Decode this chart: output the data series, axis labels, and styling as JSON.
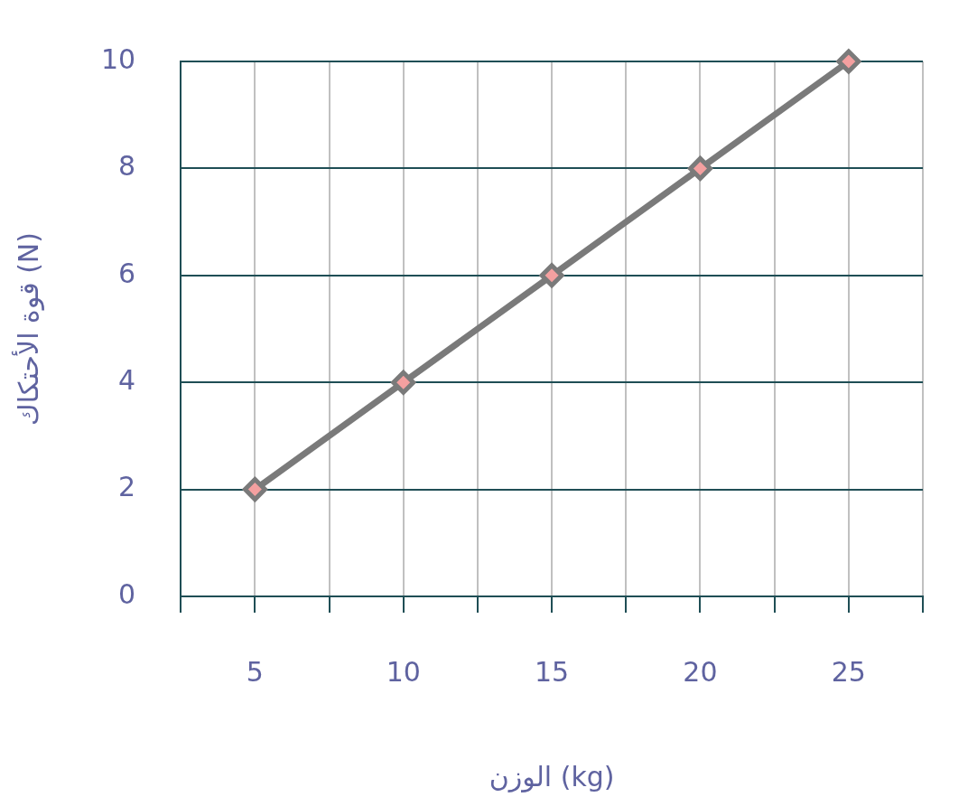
{
  "chart_data": {
    "type": "line",
    "xlabel": "الوزن (kg)",
    "ylabel": "قوة الأحتكاك (N)",
    "x": [
      5,
      10,
      15,
      20,
      25
    ],
    "series": [
      {
        "color": "#7a7a7a",
        "values": [
          2,
          4,
          6,
          8,
          10
        ]
      }
    ],
    "xlim": [
      2.5,
      27.5
    ],
    "xticks": [
      {
        "value": 2.5,
        "label": null
      },
      5,
      {
        "value": 7.5,
        "label": null
      },
      10,
      {
        "value": 12.5,
        "label": null
      },
      15,
      {
        "value": 17.5,
        "label": null
      },
      20,
      {
        "value": 22.5,
        "label": null
      },
      25,
      {
        "value": 27.5,
        "label": null
      }
    ],
    "ylim": [
      0,
      10
    ],
    "yticks": [
      0,
      2,
      4,
      6,
      8,
      10
    ],
    "grid": true,
    "legend": false,
    "marker": "diamond",
    "line_style": "solid"
  }
}
